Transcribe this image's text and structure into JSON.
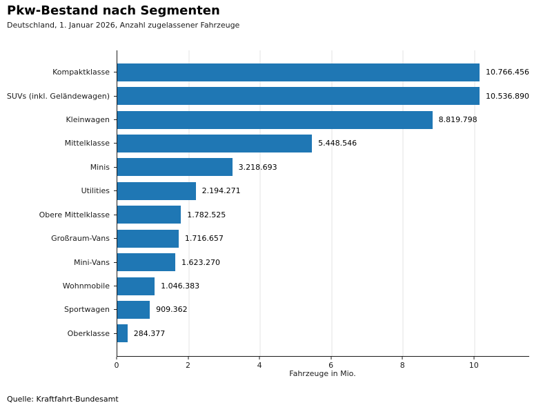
{
  "title": "Pkw-Bestand nach Segmenten",
  "subtitle": "Deutschland, 1. Januar 2026, Anzahl zugelassener Fahrzeuge",
  "source": "Quelle: Kraftfahrt-Bundesamt",
  "chart_data": {
    "type": "bar",
    "orientation": "horizontal",
    "title": "Pkw-Bestand nach Segmenten",
    "subtitle": "Deutschland, 1. Januar 2026, Anzahl zugelassener Fahrzeuge",
    "categories": [
      "Kompaktklasse",
      "SUVs (inkl. Geländewagen)",
      "Kleinwagen",
      "Mittelklasse",
      "Minis",
      "Utilities",
      "Obere Mittelklasse",
      "Großraum-Vans",
      "Mini-Vans",
      "Wohnmobile",
      "Sportwagen",
      "Oberklasse"
    ],
    "values": [
      10766456,
      10536890,
      8819798,
      5448546,
      3218693,
      2194271,
      1782525,
      1716657,
      1623270,
      1046383,
      909362,
      284377
    ],
    "value_labels": [
      "10.766.456",
      "10.536.890",
      "8.819.798",
      "5.448.546",
      "3.218.693",
      "2.194.271",
      "1.782.525",
      "1.716.657",
      "1.623.270",
      "1.046.383",
      "909.362",
      "284.377"
    ],
    "xlabel": "Fahrzeuge in Mio.",
    "ylabel": "",
    "x_ticks": [
      0,
      2,
      4,
      6,
      8,
      10
    ],
    "xlim_mio": [
      0,
      11.53
    ],
    "grid": "vertical-only",
    "legend": "none",
    "bar_color": "#1f77b4",
    "grid_color": "#e3e3e3",
    "axis_color": "#1a1a1a"
  }
}
